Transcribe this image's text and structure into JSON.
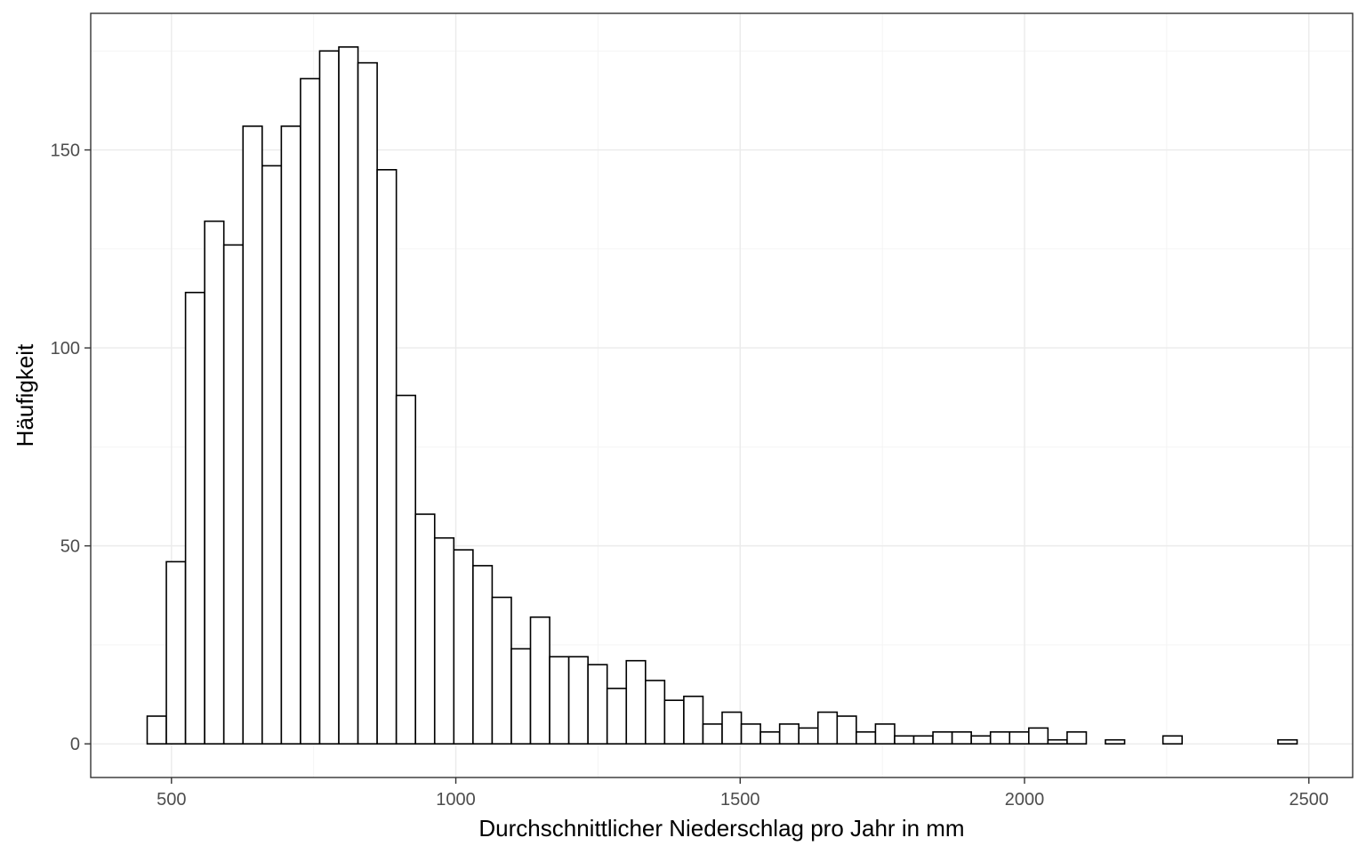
{
  "chart_data": {
    "type": "bar",
    "subtype": "histogram",
    "xlabel": "Durchschnittlicher Niederschlag pro Jahr in mm",
    "ylabel": "Häufigkeit",
    "xlim": [
      358,
      2577
    ],
    "ylim": [
      -8.5,
      184.5
    ],
    "x_ticks": [
      500,
      1000,
      1500,
      2000,
      2500
    ],
    "y_ticks": [
      0,
      50,
      100,
      150
    ],
    "grid": true,
    "bin_width": 33.7,
    "bin_start": 457.3,
    "bar_fill": "#ffffff",
    "bar_stroke": "#000000",
    "values": [
      7,
      46,
      114,
      132,
      126,
      156,
      146,
      156,
      168,
      175,
      176,
      172,
      145,
      88,
      58,
      52,
      49,
      45,
      37,
      24,
      32,
      22,
      22,
      20,
      14,
      21,
      16,
      11,
      12,
      5,
      8,
      5,
      3,
      5,
      4,
      8,
      7,
      3,
      5,
      2,
      2,
      3,
      3,
      2,
      3,
      3,
      4,
      1,
      3,
      0,
      1,
      0,
      0,
      2,
      0,
      0,
      0,
      0,
      0,
      1
    ]
  }
}
